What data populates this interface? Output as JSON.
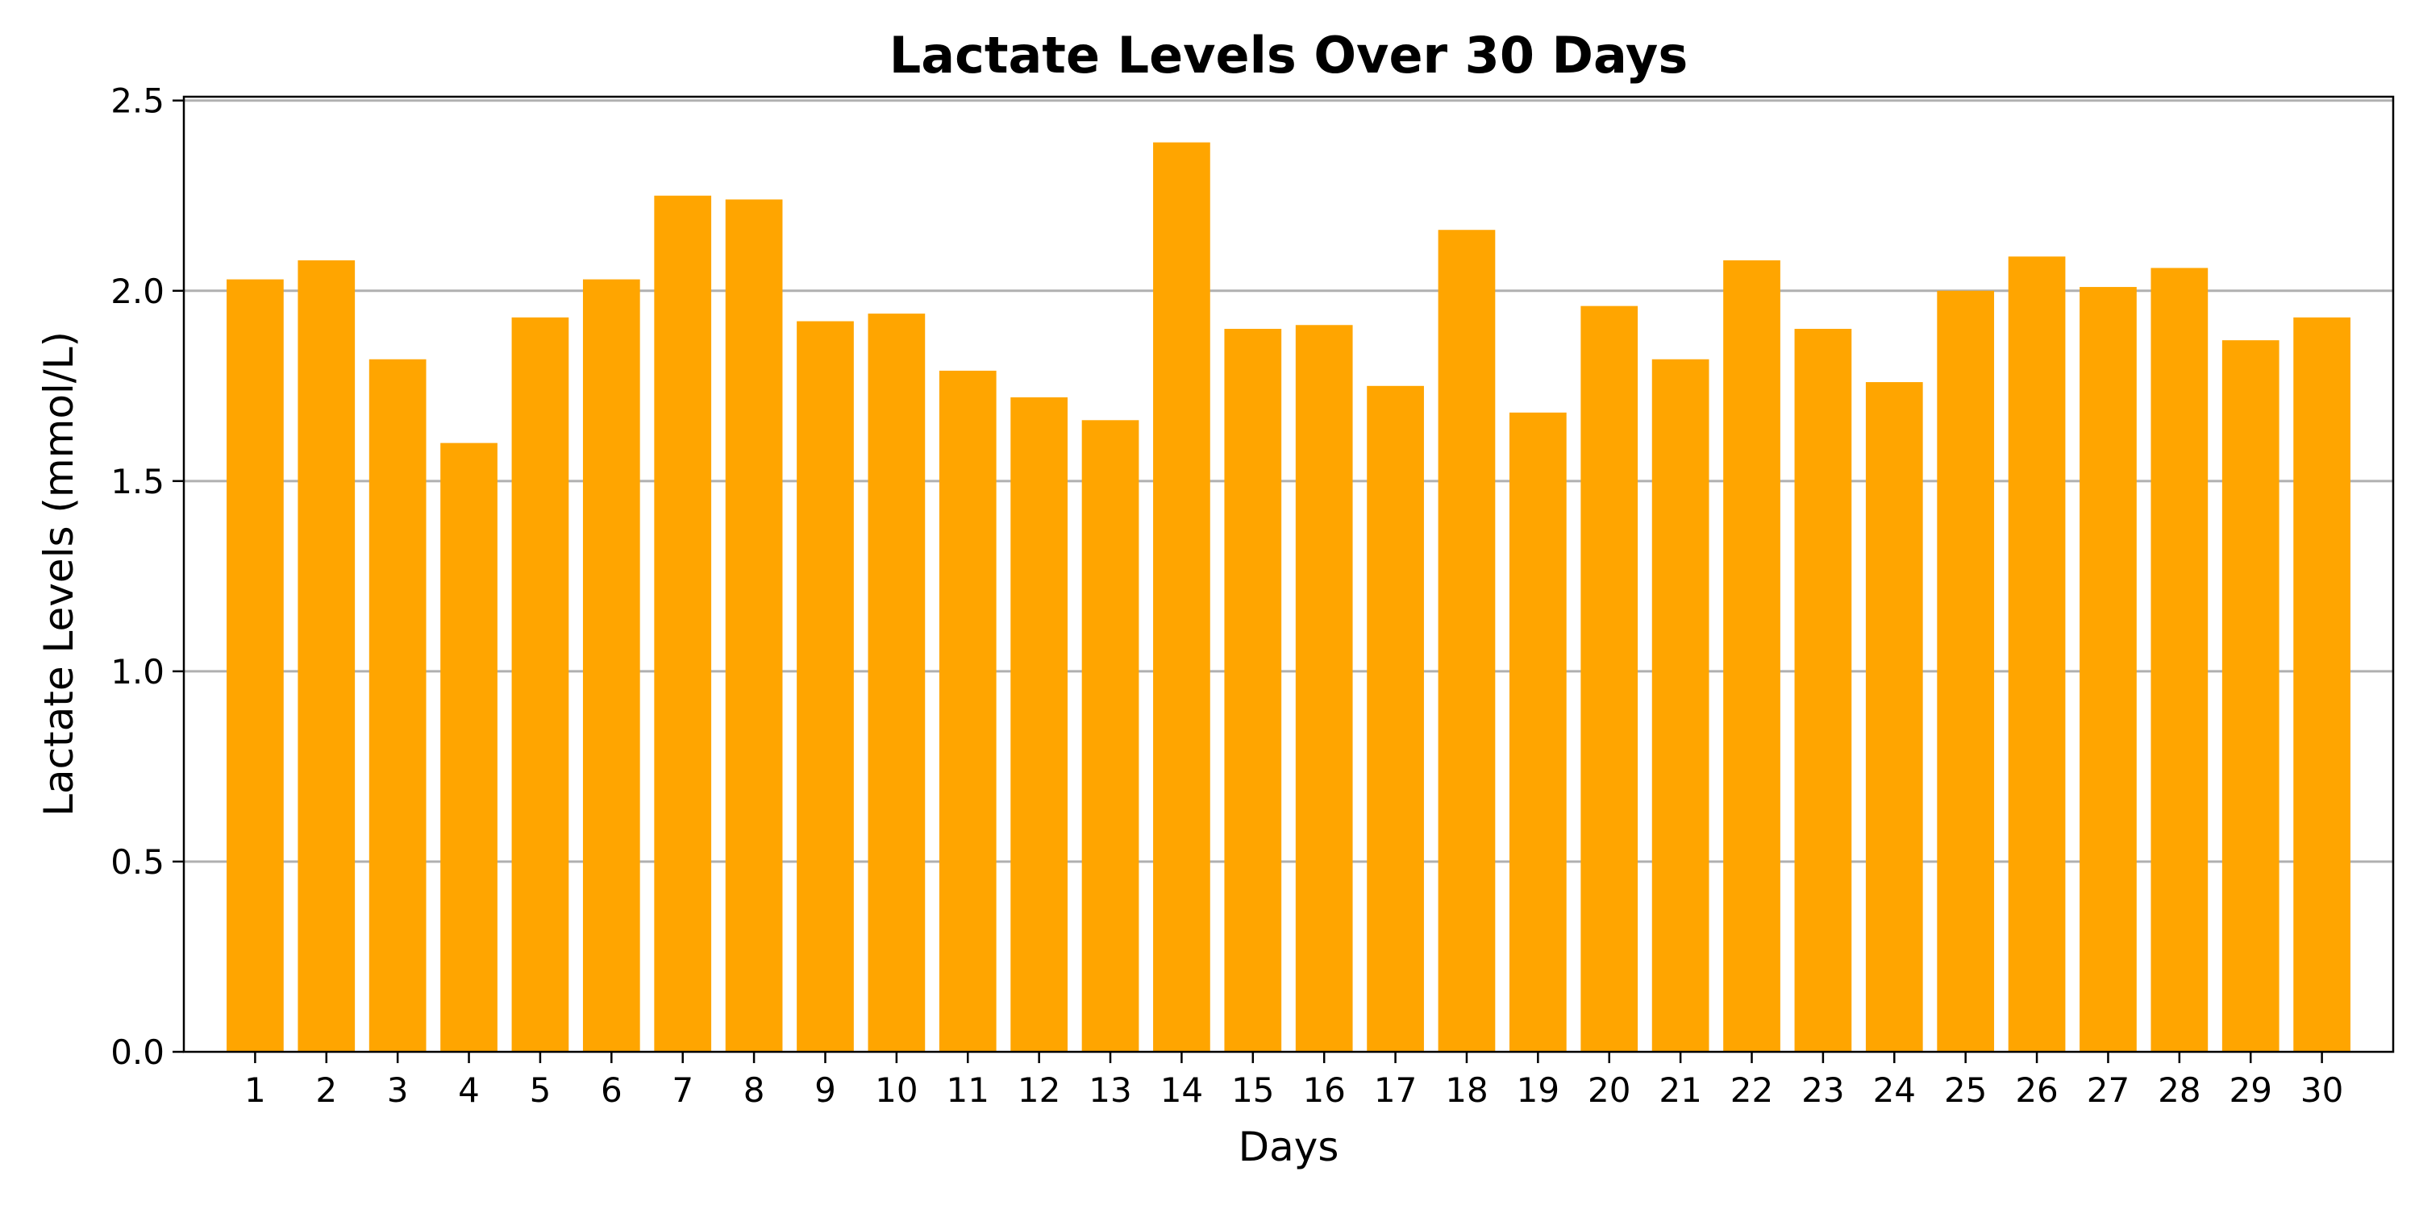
{
  "chart_data": {
    "type": "bar",
    "title": "Lactate Levels Over 30 Days",
    "xlabel": "Days",
    "ylabel": "Lactate Levels (mmol/L)",
    "categories": [
      "1",
      "2",
      "3",
      "4",
      "5",
      "6",
      "7",
      "8",
      "9",
      "10",
      "11",
      "12",
      "13",
      "14",
      "15",
      "16",
      "17",
      "18",
      "19",
      "20",
      "21",
      "22",
      "23",
      "24",
      "25",
      "26",
      "27",
      "28",
      "29",
      "30"
    ],
    "values": [
      2.03,
      2.08,
      1.82,
      1.6,
      1.93,
      2.03,
      2.25,
      2.24,
      1.92,
      1.94,
      1.79,
      1.72,
      1.66,
      2.39,
      1.9,
      1.91,
      1.75,
      2.16,
      1.68,
      1.96,
      1.82,
      2.08,
      1.9,
      1.76,
      2.0,
      2.09,
      2.01,
      2.06,
      1.87,
      1.93
    ],
    "ylim": [
      0,
      2.51
    ],
    "yticks": [
      "0.0",
      "0.5",
      "1.0",
      "1.5",
      "2.0",
      "2.5"
    ],
    "grid": "y",
    "bar_color": "#ffa500"
  }
}
